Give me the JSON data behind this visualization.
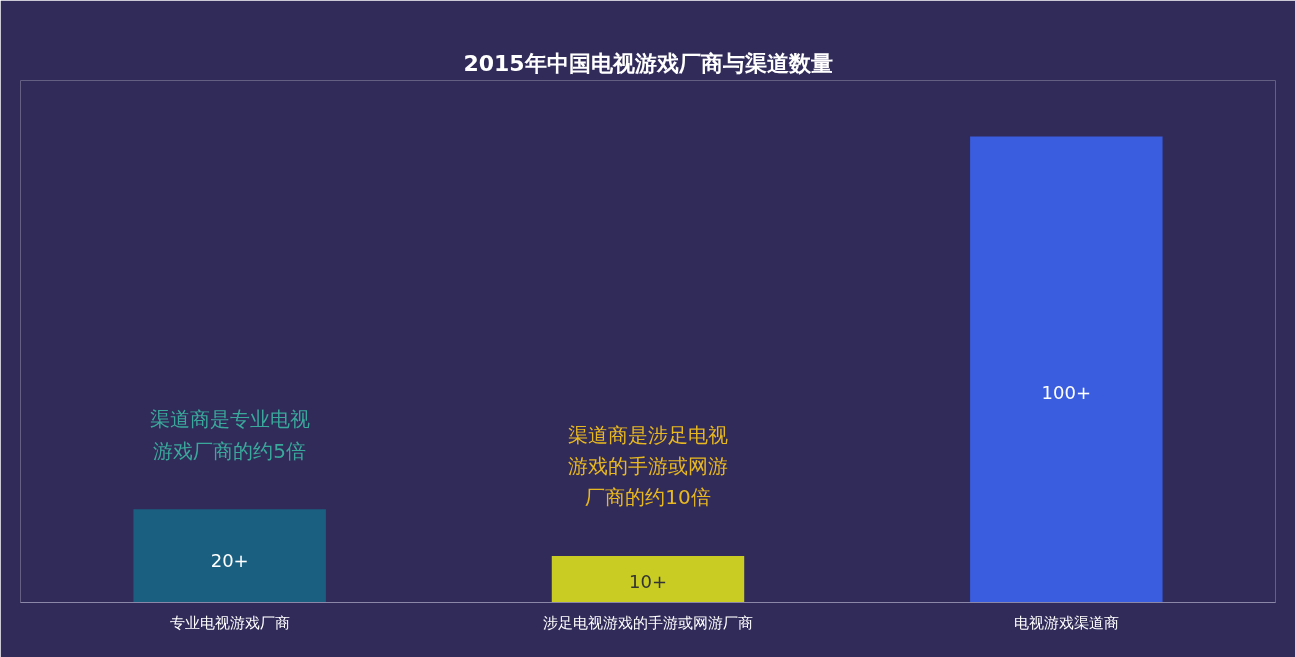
{
  "chart_data": {
    "type": "bar",
    "title": "2015年中国电视游戏厂商与渠道数量",
    "categories": [
      "专业电视游戏厂商",
      "涉足电视游戏的手游或网游厂商",
      "电视游戏渠道商"
    ],
    "values": [
      20,
      10,
      100
    ],
    "colors": [
      "#1a5f80",
      "#c9cc22",
      "#3a5de0"
    ],
    "value_labels": [
      "20+",
      "10+",
      "100+"
    ],
    "annotations": [
      "渠道商是专业电视游戏厂商的约5倍",
      "渠道商是涉足电视游戏的手游或网游厂商的约10倍"
    ],
    "grid": false
  }
}
